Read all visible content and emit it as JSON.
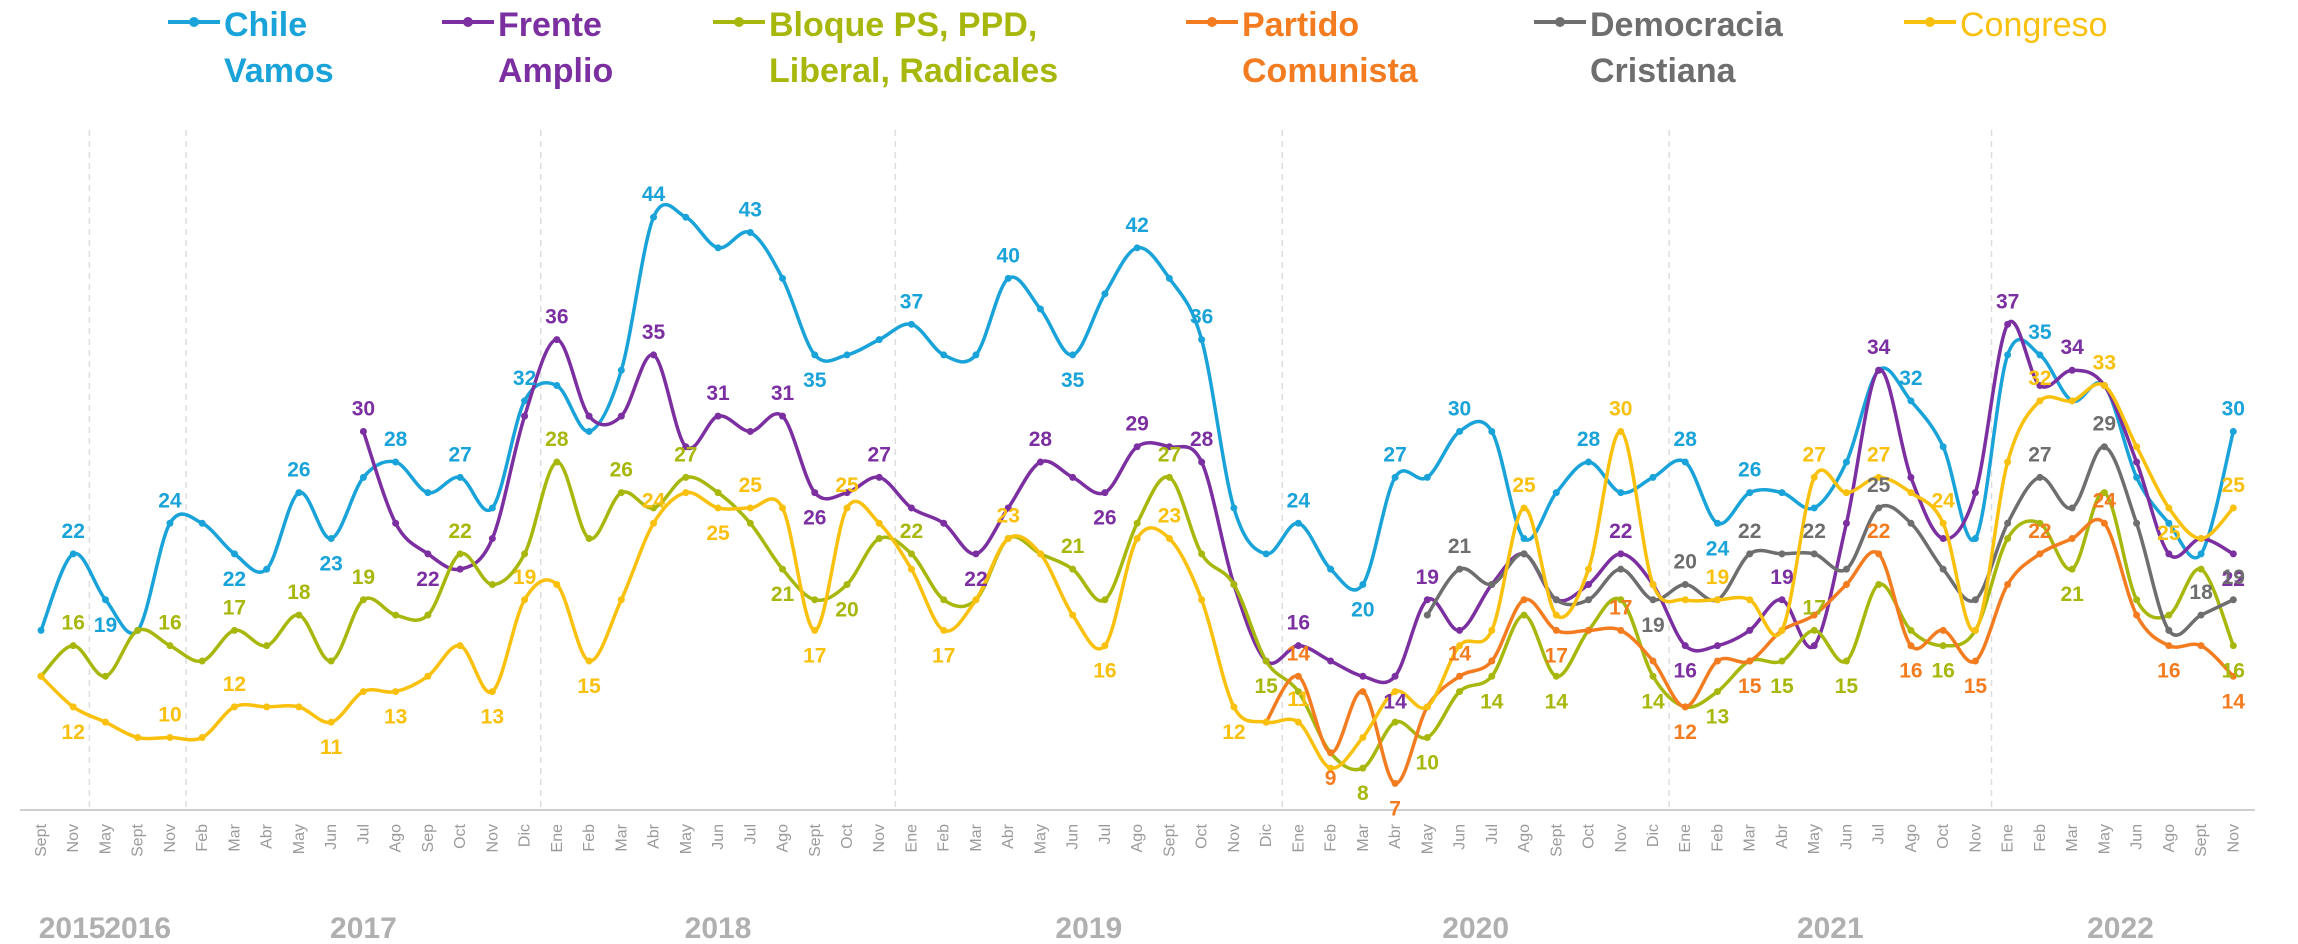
{
  "chart_data": {
    "type": "line",
    "categories": [
      "Sept",
      "Nov",
      "May",
      "Sept",
      "Nov",
      "Feb",
      "Mar",
      "Abr",
      "May",
      "Jun",
      "Jul",
      "Ago",
      "Sep",
      "Oct",
      "Nov",
      "Dic",
      "Ene",
      "Feb",
      "Mar",
      "Abr",
      "May",
      "Jun",
      "Jul",
      "Ago",
      "Sept",
      "Oct",
      "Nov",
      "Ene",
      "Feb",
      "Mar",
      "Abr",
      "May",
      "Jun",
      "Jul",
      "Ago",
      "Sept",
      "Oct",
      "Nov",
      "Dic",
      "Ene",
      "Feb",
      "Mar",
      "Abr",
      "May",
      "Jun",
      "Jul",
      "Ago",
      "Sept",
      "Oct",
      "Nov",
      "Dic",
      "Ene",
      "Feb",
      "Mar",
      "Abr",
      "May",
      "Jun",
      "Jul",
      "Ago",
      "Oct",
      "Nov",
      "Ene",
      "Feb",
      "Mar",
      "May",
      "Jun",
      "Ago",
      "Sept",
      "Nov"
    ],
    "year_groups": [
      {
        "name": "2015",
        "count": 2
      },
      {
        "name": "2016",
        "count": 3
      },
      {
        "name": "2017",
        "count": 11
      },
      {
        "name": "2018",
        "count": 11
      },
      {
        "name": "2019",
        "count": 12
      },
      {
        "name": "2020",
        "count": 12
      },
      {
        "name": "2021",
        "count": 10
      },
      {
        "name": "2022",
        "count": 8
      }
    ],
    "ylim": [
      5,
      48
    ],
    "series": [
      {
        "name": "Chile Vamos",
        "color": "#1aa3d9",
        "values": [
          17,
          22,
          19,
          17,
          24,
          24,
          22,
          21,
          26,
          23,
          27,
          28,
          26,
          27,
          25,
          32,
          33,
          30,
          34,
          44,
          44,
          42,
          43,
          40,
          35,
          35,
          36,
          37,
          35,
          35,
          40,
          38,
          35,
          39,
          42,
          40,
          36,
          25,
          22,
          24,
          21,
          20,
          27,
          27,
          30,
          30,
          23,
          26,
          28,
          26,
          27,
          28,
          24,
          26,
          26,
          25,
          28,
          34,
          32,
          29,
          23,
          35,
          35,
          32,
          33,
          27,
          24,
          22,
          30
        ],
        "labeled_points": [
          1,
          2,
          4,
          6,
          8,
          9,
          11,
          13,
          15,
          19,
          22,
          24,
          27,
          30,
          32,
          34,
          36,
          39,
          41,
          42,
          44,
          48,
          51,
          52,
          53,
          58,
          62,
          68
        ]
      },
      {
        "name": "Frente Amplio",
        "color": "#7b2fa0",
        "values": [
          null,
          null,
          null,
          null,
          null,
          null,
          null,
          null,
          null,
          null,
          30,
          24,
          22,
          21,
          23,
          31,
          36,
          31,
          31,
          35,
          29,
          31,
          30,
          31,
          26,
          26,
          27,
          25,
          24,
          22,
          25,
          28,
          27,
          26,
          29,
          29,
          28,
          20,
          15,
          16,
          15,
          14,
          14,
          19,
          17,
          20,
          22,
          19,
          20,
          22,
          20,
          16,
          16,
          17,
          19,
          16,
          24,
          34,
          27,
          23,
          26,
          37,
          33,
          34,
          33,
          28,
          22,
          23,
          22
        ],
        "labeled_points": [
          10,
          12,
          16,
          19,
          21,
          23,
          24,
          26,
          29,
          31,
          33,
          34,
          36,
          39,
          42,
          43,
          49,
          51,
          54,
          57,
          61,
          63,
          68
        ]
      },
      {
        "name": "Bloque PS, PPD, Liberal, Radicales",
        "color": "#a8b70c",
        "values": [
          14,
          16,
          14,
          17,
          16,
          15,
          17,
          16,
          18,
          15,
          19,
          18,
          18,
          22,
          20,
          22,
          28,
          23,
          26,
          25,
          27,
          26,
          24,
          21,
          19,
          20,
          23,
          22,
          19,
          19,
          23,
          22,
          21,
          19,
          24,
          27,
          22,
          20,
          15,
          13,
          9,
          8,
          11,
          10,
          13,
          14,
          18,
          14,
          17,
          19,
          14,
          12,
          13,
          15,
          15,
          17,
          15,
          20,
          17,
          16,
          17,
          23,
          24,
          21,
          26,
          19,
          18,
          21,
          16
        ],
        "labeled_points": [
          1,
          4,
          6,
          8,
          10,
          13,
          16,
          18,
          20,
          23,
          25,
          27,
          32,
          35,
          38,
          41,
          43,
          45,
          47,
          50,
          52,
          54,
          55,
          56,
          59,
          63,
          68
        ]
      },
      {
        "name": "Partido Comunista",
        "color": "#f47c20",
        "values": [
          null,
          null,
          null,
          null,
          null,
          null,
          null,
          null,
          null,
          null,
          null,
          null,
          null,
          null,
          null,
          null,
          null,
          null,
          null,
          null,
          null,
          null,
          null,
          null,
          null,
          null,
          null,
          null,
          null,
          null,
          null,
          null,
          null,
          null,
          null,
          null,
          null,
          null,
          11,
          14,
          9,
          13,
          7,
          12,
          14,
          15,
          19,
          17,
          17,
          17,
          15,
          12,
          15,
          15,
          17,
          18,
          20,
          22,
          16,
          17,
          15,
          20,
          22,
          23,
          24,
          18,
          16,
          16,
          14
        ],
        "labeled_points": [
          39,
          40,
          42,
          44,
          47,
          49,
          51,
          53,
          57,
          58,
          60,
          62,
          64,
          66,
          68
        ]
      },
      {
        "name": "Democracia Cristiana",
        "color": "#6e6e6e",
        "values": [
          null,
          null,
          null,
          null,
          null,
          null,
          null,
          null,
          null,
          null,
          null,
          null,
          null,
          null,
          null,
          null,
          null,
          null,
          null,
          null,
          null,
          null,
          null,
          null,
          null,
          null,
          null,
          null,
          null,
          null,
          null,
          null,
          null,
          null,
          null,
          null,
          null,
          null,
          null,
          null,
          null,
          null,
          null,
          18,
          21,
          20,
          22,
          19,
          19,
          21,
          19,
          20,
          19,
          22,
          22,
          22,
          21,
          25,
          24,
          21,
          19,
          24,
          27,
          25,
          29,
          24,
          17,
          18,
          19
        ],
        "labeled_points": [
          44,
          50,
          51,
          53,
          55,
          57,
          62,
          64,
          67,
          68
        ]
      },
      {
        "name": "Congreso",
        "color": "#f9c10d",
        "values": [
          14,
          12,
          11,
          10,
          10,
          10,
          12,
          12,
          12,
          11,
          13,
          13,
          14,
          16,
          13,
          19,
          20,
          15,
          19,
          24,
          26,
          25,
          25,
          25,
          17,
          25,
          24,
          21,
          17,
          19,
          23,
          22,
          18,
          16,
          23,
          23,
          19,
          12,
          11,
          11,
          8,
          10,
          13,
          12,
          16,
          17,
          25,
          18,
          21,
          30,
          20,
          19,
          19,
          19,
          17,
          27,
          26,
          27,
          26,
          24,
          17,
          28,
          32,
          32,
          33,
          29,
          25,
          23,
          25
        ],
        "labeled_points": [
          1,
          4,
          6,
          9,
          11,
          14,
          15,
          17,
          19,
          21,
          22,
          24,
          25,
          28,
          30,
          33,
          35,
          37,
          39,
          46,
          49,
          52,
          55,
          57,
          59,
          62,
          64,
          66,
          68
        ]
      }
    ]
  }
}
